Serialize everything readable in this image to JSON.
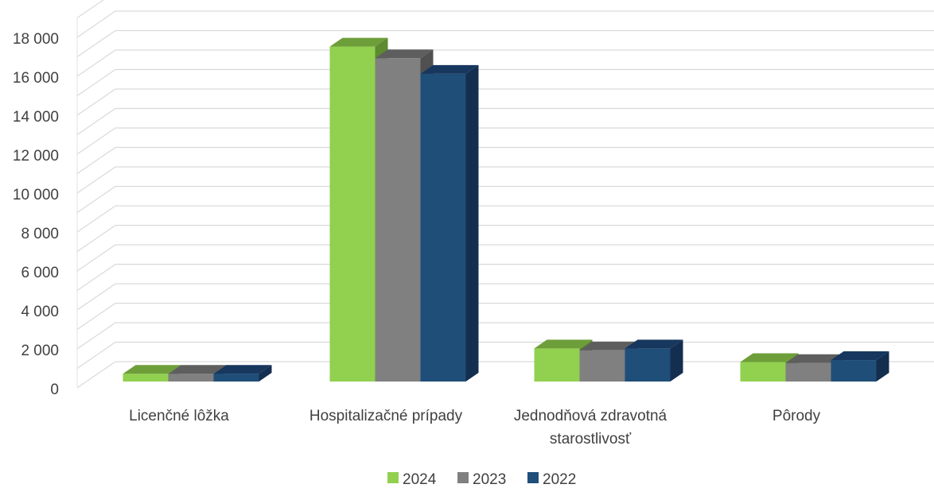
{
  "chart_data": {
    "type": "bar",
    "categories": [
      [
        "Licenčné lôžka"
      ],
      [
        "Hospitalizačné prípady"
      ],
      [
        "Jednodňová zdravotná",
        "starostlivosť"
      ],
      [
        "Pôrody"
      ]
    ],
    "series": [
      {
        "name": "2024",
        "values": [
          400,
          17200,
          1700,
          1000
        ],
        "color": "#92D050",
        "top_color": "#6E9E3A",
        "side_color": "#5E8A30"
      },
      {
        "name": "2023",
        "values": [
          400,
          16600,
          1600,
          950
        ],
        "color": "#808080",
        "top_color": "#5E5E5E",
        "side_color": "#505050"
      },
      {
        "name": "2022",
        "values": [
          400,
          15800,
          1700,
          1100
        ],
        "color": "#1F4E79",
        "top_color": "#17375E",
        "side_color": "#142E4F"
      }
    ],
    "y_ticks": [
      "0",
      "2 000",
      "4 000",
      "6 000",
      "8 000",
      "10 000",
      "12 000",
      "14 000",
      "16 000",
      "18 000"
    ],
    "ylim": [
      0,
      18000
    ],
    "grid": true,
    "legend_position": "bottom",
    "style": "3d-clustered-column"
  }
}
